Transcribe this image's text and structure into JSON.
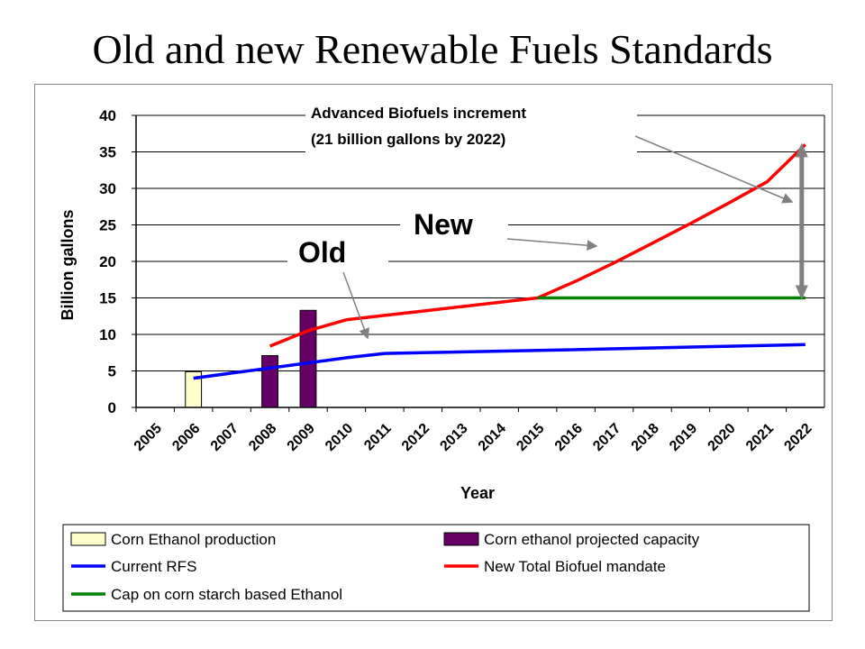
{
  "slide": {
    "title": "Old and new Renewable Fuels Standards"
  },
  "chart_data": {
    "type": "bar",
    "title": "Old and new Renewable Fuels Standards",
    "xlabel": "Year",
    "ylabel": "Billion gallons",
    "ylim": [
      0,
      40
    ],
    "yticks": [
      0,
      5,
      10,
      15,
      20,
      25,
      30,
      35,
      40
    ],
    "categories": [
      "2005",
      "2006",
      "2007",
      "2008",
      "2009",
      "2010",
      "2011",
      "2012",
      "2013",
      "2014",
      "2015",
      "2016",
      "2017",
      "2018",
      "2019",
      "2020",
      "2021",
      "2022"
    ],
    "grid": true,
    "legend_position": "bottom",
    "bars": [
      {
        "name": "Corn Ethanol production",
        "color": "#FFFFCC",
        "points": [
          {
            "x": "2006",
            "y": 4.9
          }
        ]
      },
      {
        "name": "Corn ethanol projected capacity",
        "color": "#660066",
        "points": [
          {
            "x": "2008",
            "y": 7.1
          },
          {
            "x": "2009",
            "y": 13.3
          }
        ]
      }
    ],
    "series": [
      {
        "name": "Current RFS",
        "color": "#0000FF",
        "type": "line",
        "points": [
          [
            2006.5,
            4.0
          ],
          [
            2007.5,
            4.7
          ],
          [
            2008.5,
            5.4
          ],
          [
            2009.5,
            6.1
          ],
          [
            2010.5,
            6.8
          ],
          [
            2011.5,
            7.4
          ],
          [
            2012.5,
            7.5
          ],
          [
            2015.5,
            7.8
          ],
          [
            2022.5,
            8.6
          ]
        ]
      },
      {
        "name": "New Total Biofuel mandate",
        "color": "#FF0000",
        "type": "line",
        "points": [
          [
            2008.5,
            8.4
          ],
          [
            2009.5,
            10.5
          ],
          [
            2010.5,
            12.0
          ],
          [
            2011.5,
            12.6
          ],
          [
            2012.5,
            13.2
          ],
          [
            2013.5,
            13.8
          ],
          [
            2014.5,
            14.4
          ],
          [
            2015.5,
            15.0
          ],
          [
            2016.5,
            17.3
          ],
          [
            2017.5,
            19.8
          ],
          [
            2018.5,
            22.5
          ],
          [
            2019.5,
            25.2
          ],
          [
            2020.5,
            28.0
          ],
          [
            2021.5,
            30.9
          ],
          [
            2022.5,
            36.0
          ]
        ]
      },
      {
        "name": "Cap on corn starch based Ethanol",
        "color": "#008000",
        "type": "line",
        "points": [
          [
            2015.5,
            15.0
          ],
          [
            2022.5,
            15.0
          ]
        ]
      }
    ],
    "annotations": [
      {
        "text_lines": [
          "Advanced Biofuels increment",
          "(21 billion gallons by 2022)"
        ]
      },
      {
        "text": "New"
      },
      {
        "text": "Old"
      }
    ],
    "increment_arrow": {
      "from_y": 15.0,
      "to_y": 36.0,
      "at_x": 2022.5,
      "color": "#808080"
    }
  }
}
